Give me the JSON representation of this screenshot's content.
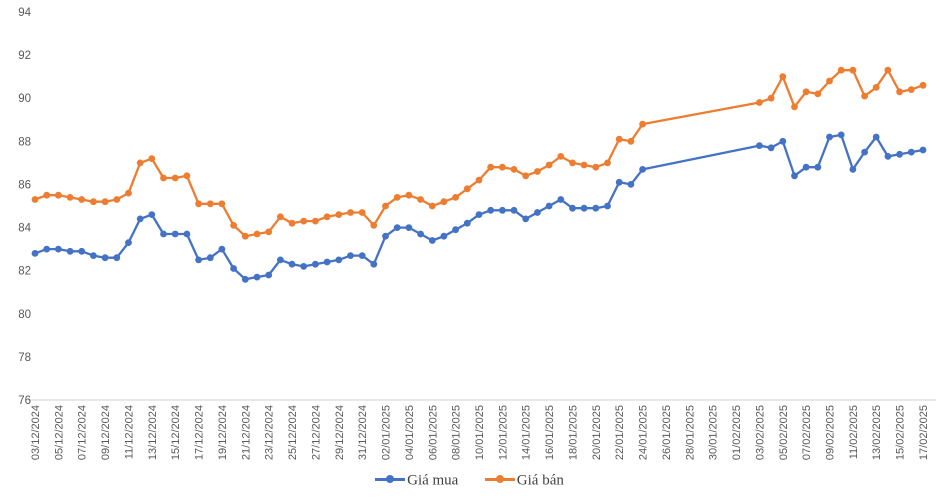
{
  "chart_data": {
    "type": "line",
    "title": "",
    "grid": false,
    "legend_position": "bottom",
    "colors": {
      "buy_line": "#4472C4",
      "sell_line": "#ED7D31",
      "axis_line": "#D9D9D9",
      "tick_label": "#595959",
      "legend_text": "#404040"
    },
    "y_axis": {
      "min": 76,
      "max": 94,
      "step": 2,
      "tick_labels": [
        "76",
        "78",
        "80",
        "82",
        "84",
        "86",
        "88",
        "90",
        "92",
        "94"
      ]
    },
    "x_axis": {
      "tick_labels": [
        "03/12/2024",
        "05/12/2024",
        "07/12/2024",
        "09/12/2024",
        "11/12/2024",
        "13/12/2024",
        "15/12/2024",
        "17/12/2024",
        "19/12/2024",
        "21/12/2024",
        "23/12/2024",
        "25/12/2024",
        "27/12/2024",
        "29/12/2024",
        "31/12/2024",
        "02/01/2025",
        "04/01/2025",
        "06/01/2025",
        "08/01/2025",
        "10/01/2025",
        "12/01/2025",
        "14/01/2025",
        "16/01/2025",
        "18/01/2025",
        "20/01/2025",
        "22/01/2025",
        "24/01/2025",
        "26/01/2025",
        "28/01/2025",
        "30/01/2025",
        "01/02/2025",
        "03/02/2025",
        "05/02/2025",
        "07/02/2025",
        "09/02/2025",
        "11/02/2025",
        "13/02/2025",
        "15/02/2025",
        "17/02/2025"
      ],
      "days_per_tick": 2
    },
    "series": [
      {
        "name": "Giá mua",
        "color": "#4472C4",
        "points": [
          [
            0,
            82.8
          ],
          [
            1,
            83.0
          ],
          [
            2,
            83.0
          ],
          [
            3,
            82.9
          ],
          [
            4,
            82.9
          ],
          [
            5,
            82.7
          ],
          [
            6,
            82.6
          ],
          [
            7,
            82.6
          ],
          [
            8,
            83.3
          ],
          [
            9,
            84.4
          ],
          [
            10,
            84.6
          ],
          [
            11,
            83.7
          ],
          [
            12,
            83.7
          ],
          [
            13,
            83.7
          ],
          [
            14,
            82.5
          ],
          [
            15,
            82.6
          ],
          [
            16,
            83.0
          ],
          [
            17,
            82.1
          ],
          [
            18,
            81.6
          ],
          [
            19,
            81.7
          ],
          [
            20,
            81.8
          ],
          [
            21,
            82.5
          ],
          [
            22,
            82.3
          ],
          [
            23,
            82.2
          ],
          [
            24,
            82.3
          ],
          [
            25,
            82.4
          ],
          [
            26,
            82.5
          ],
          [
            27,
            82.7
          ],
          [
            28,
            82.7
          ],
          [
            29,
            82.3
          ],
          [
            30,
            83.6
          ],
          [
            31,
            84.0
          ],
          [
            32,
            84.0
          ],
          [
            33,
            83.7
          ],
          [
            34,
            83.4
          ],
          [
            35,
            83.6
          ],
          [
            36,
            83.9
          ],
          [
            37,
            84.2
          ],
          [
            38,
            84.6
          ],
          [
            39,
            84.8
          ],
          [
            40,
            84.8
          ],
          [
            41,
            84.8
          ],
          [
            42,
            84.4
          ],
          [
            43,
            84.7
          ],
          [
            44,
            85.0
          ],
          [
            45,
            85.3
          ],
          [
            46,
            84.9
          ],
          [
            47,
            84.9
          ],
          [
            48,
            84.9
          ],
          [
            49,
            85.0
          ],
          [
            50,
            86.1
          ],
          [
            51,
            86.0
          ],
          [
            52,
            86.7
          ],
          [
            62,
            87.8
          ],
          [
            63,
            87.7
          ],
          [
            64,
            88.0
          ],
          [
            65,
            86.4
          ],
          [
            66,
            86.8
          ],
          [
            67,
            86.8
          ],
          [
            68,
            88.2
          ],
          [
            69,
            88.3
          ],
          [
            70,
            86.7
          ],
          [
            71,
            87.5
          ],
          [
            72,
            88.2
          ],
          [
            73,
            87.3
          ],
          [
            74,
            87.4
          ],
          [
            75,
            87.5
          ],
          [
            76,
            87.6
          ]
        ]
      },
      {
        "name": "Giá bán",
        "color": "#ED7D31",
        "points": [
          [
            0,
            85.3
          ],
          [
            1,
            85.5
          ],
          [
            2,
            85.5
          ],
          [
            3,
            85.4
          ],
          [
            4,
            85.3
          ],
          [
            5,
            85.2
          ],
          [
            6,
            85.2
          ],
          [
            7,
            85.3
          ],
          [
            8,
            85.6
          ],
          [
            9,
            87.0
          ],
          [
            10,
            87.2
          ],
          [
            11,
            86.3
          ],
          [
            12,
            86.3
          ],
          [
            13,
            86.4
          ],
          [
            14,
            85.1
          ],
          [
            15,
            85.1
          ],
          [
            16,
            85.1
          ],
          [
            17,
            84.1
          ],
          [
            18,
            83.6
          ],
          [
            19,
            83.7
          ],
          [
            20,
            83.8
          ],
          [
            21,
            84.5
          ],
          [
            22,
            84.2
          ],
          [
            23,
            84.3
          ],
          [
            24,
            84.3
          ],
          [
            25,
            84.5
          ],
          [
            26,
            84.6
          ],
          [
            27,
            84.7
          ],
          [
            28,
            84.7
          ],
          [
            29,
            84.1
          ],
          [
            30,
            85.0
          ],
          [
            31,
            85.4
          ],
          [
            32,
            85.5
          ],
          [
            33,
            85.3
          ],
          [
            34,
            85.0
          ],
          [
            35,
            85.2
          ],
          [
            36,
            85.4
          ],
          [
            37,
            85.8
          ],
          [
            38,
            86.2
          ],
          [
            39,
            86.8
          ],
          [
            40,
            86.8
          ],
          [
            41,
            86.7
          ],
          [
            42,
            86.4
          ],
          [
            43,
            86.6
          ],
          [
            44,
            86.9
          ],
          [
            45,
            87.3
          ],
          [
            46,
            87.0
          ],
          [
            47,
            86.9
          ],
          [
            48,
            86.8
          ],
          [
            49,
            87.0
          ],
          [
            50,
            88.1
          ],
          [
            51,
            88.0
          ],
          [
            52,
            88.8
          ],
          [
            62,
            89.8
          ],
          [
            63,
            90.0
          ],
          [
            64,
            91.0
          ],
          [
            65,
            89.6
          ],
          [
            66,
            90.3
          ],
          [
            67,
            90.2
          ],
          [
            68,
            90.8
          ],
          [
            69,
            91.3
          ],
          [
            70,
            91.3
          ],
          [
            71,
            90.1
          ],
          [
            72,
            90.5
          ],
          [
            73,
            91.3
          ],
          [
            74,
            90.3
          ],
          [
            75,
            90.4
          ],
          [
            76,
            90.6
          ]
        ]
      }
    ]
  }
}
